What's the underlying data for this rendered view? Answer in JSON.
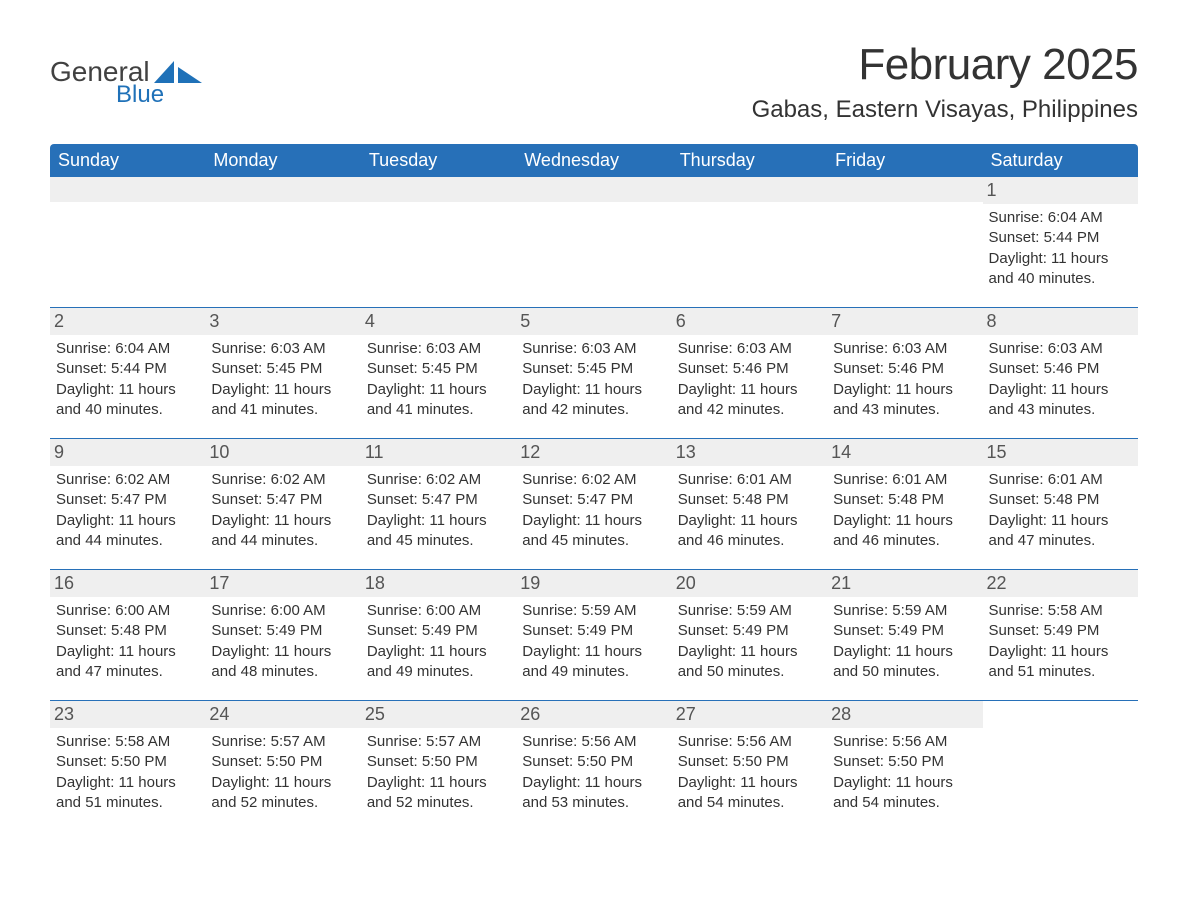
{
  "brand": {
    "word1": "General",
    "word2": "Blue",
    "word1_color": "#414141",
    "word2_color": "#1f71b8",
    "icon_color": "#1f71b8"
  },
  "title": {
    "month_year": "February 2025",
    "location": "Gabas, Eastern Visayas, Philippines",
    "month_fontsize": 44,
    "location_fontsize": 24,
    "text_color": "#333333"
  },
  "calendar": {
    "header_bg": "#2770b8",
    "header_fg": "#ffffff",
    "daynum_bg": "#efefef",
    "divider_color": "#2770b8",
    "background": "#ffffff",
    "text_color": "#333333",
    "body_fontsize": 15,
    "header_fontsize": 18,
    "daynum_fontsize": 18,
    "columns": [
      "Sunday",
      "Monday",
      "Tuesday",
      "Wednesday",
      "Thursday",
      "Friday",
      "Saturday"
    ],
    "weeks": [
      [
        null,
        null,
        null,
        null,
        null,
        null,
        {
          "day": "1",
          "sunrise": "Sunrise: 6:04 AM",
          "sunset": "Sunset: 5:44 PM",
          "daylight": "Daylight: 11 hours and 40 minutes."
        }
      ],
      [
        {
          "day": "2",
          "sunrise": "Sunrise: 6:04 AM",
          "sunset": "Sunset: 5:44 PM",
          "daylight": "Daylight: 11 hours and 40 minutes."
        },
        {
          "day": "3",
          "sunrise": "Sunrise: 6:03 AM",
          "sunset": "Sunset: 5:45 PM",
          "daylight": "Daylight: 11 hours and 41 minutes."
        },
        {
          "day": "4",
          "sunrise": "Sunrise: 6:03 AM",
          "sunset": "Sunset: 5:45 PM",
          "daylight": "Daylight: 11 hours and 41 minutes."
        },
        {
          "day": "5",
          "sunrise": "Sunrise: 6:03 AM",
          "sunset": "Sunset: 5:45 PM",
          "daylight": "Daylight: 11 hours and 42 minutes."
        },
        {
          "day": "6",
          "sunrise": "Sunrise: 6:03 AM",
          "sunset": "Sunset: 5:46 PM",
          "daylight": "Daylight: 11 hours and 42 minutes."
        },
        {
          "day": "7",
          "sunrise": "Sunrise: 6:03 AM",
          "sunset": "Sunset: 5:46 PM",
          "daylight": "Daylight: 11 hours and 43 minutes."
        },
        {
          "day": "8",
          "sunrise": "Sunrise: 6:03 AM",
          "sunset": "Sunset: 5:46 PM",
          "daylight": "Daylight: 11 hours and 43 minutes."
        }
      ],
      [
        {
          "day": "9",
          "sunrise": "Sunrise: 6:02 AM",
          "sunset": "Sunset: 5:47 PM",
          "daylight": "Daylight: 11 hours and 44 minutes."
        },
        {
          "day": "10",
          "sunrise": "Sunrise: 6:02 AM",
          "sunset": "Sunset: 5:47 PM",
          "daylight": "Daylight: 11 hours and 44 minutes."
        },
        {
          "day": "11",
          "sunrise": "Sunrise: 6:02 AM",
          "sunset": "Sunset: 5:47 PM",
          "daylight": "Daylight: 11 hours and 45 minutes."
        },
        {
          "day": "12",
          "sunrise": "Sunrise: 6:02 AM",
          "sunset": "Sunset: 5:47 PM",
          "daylight": "Daylight: 11 hours and 45 minutes."
        },
        {
          "day": "13",
          "sunrise": "Sunrise: 6:01 AM",
          "sunset": "Sunset: 5:48 PM",
          "daylight": "Daylight: 11 hours and 46 minutes."
        },
        {
          "day": "14",
          "sunrise": "Sunrise: 6:01 AM",
          "sunset": "Sunset: 5:48 PM",
          "daylight": "Daylight: 11 hours and 46 minutes."
        },
        {
          "day": "15",
          "sunrise": "Sunrise: 6:01 AM",
          "sunset": "Sunset: 5:48 PM",
          "daylight": "Daylight: 11 hours and 47 minutes."
        }
      ],
      [
        {
          "day": "16",
          "sunrise": "Sunrise: 6:00 AM",
          "sunset": "Sunset: 5:48 PM",
          "daylight": "Daylight: 11 hours and 47 minutes."
        },
        {
          "day": "17",
          "sunrise": "Sunrise: 6:00 AM",
          "sunset": "Sunset: 5:49 PM",
          "daylight": "Daylight: 11 hours and 48 minutes."
        },
        {
          "day": "18",
          "sunrise": "Sunrise: 6:00 AM",
          "sunset": "Sunset: 5:49 PM",
          "daylight": "Daylight: 11 hours and 49 minutes."
        },
        {
          "day": "19",
          "sunrise": "Sunrise: 5:59 AM",
          "sunset": "Sunset: 5:49 PM",
          "daylight": "Daylight: 11 hours and 49 minutes."
        },
        {
          "day": "20",
          "sunrise": "Sunrise: 5:59 AM",
          "sunset": "Sunset: 5:49 PM",
          "daylight": "Daylight: 11 hours and 50 minutes."
        },
        {
          "day": "21",
          "sunrise": "Sunrise: 5:59 AM",
          "sunset": "Sunset: 5:49 PM",
          "daylight": "Daylight: 11 hours and 50 minutes."
        },
        {
          "day": "22",
          "sunrise": "Sunrise: 5:58 AM",
          "sunset": "Sunset: 5:49 PM",
          "daylight": "Daylight: 11 hours and 51 minutes."
        }
      ],
      [
        {
          "day": "23",
          "sunrise": "Sunrise: 5:58 AM",
          "sunset": "Sunset: 5:50 PM",
          "daylight": "Daylight: 11 hours and 51 minutes."
        },
        {
          "day": "24",
          "sunrise": "Sunrise: 5:57 AM",
          "sunset": "Sunset: 5:50 PM",
          "daylight": "Daylight: 11 hours and 52 minutes."
        },
        {
          "day": "25",
          "sunrise": "Sunrise: 5:57 AM",
          "sunset": "Sunset: 5:50 PM",
          "daylight": "Daylight: 11 hours and 52 minutes."
        },
        {
          "day": "26",
          "sunrise": "Sunrise: 5:56 AM",
          "sunset": "Sunset: 5:50 PM",
          "daylight": "Daylight: 11 hours and 53 minutes."
        },
        {
          "day": "27",
          "sunrise": "Sunrise: 5:56 AM",
          "sunset": "Sunset: 5:50 PM",
          "daylight": "Daylight: 11 hours and 54 minutes."
        },
        {
          "day": "28",
          "sunrise": "Sunrise: 5:56 AM",
          "sunset": "Sunset: 5:50 PM",
          "daylight": "Daylight: 11 hours and 54 minutes."
        },
        null
      ]
    ]
  }
}
